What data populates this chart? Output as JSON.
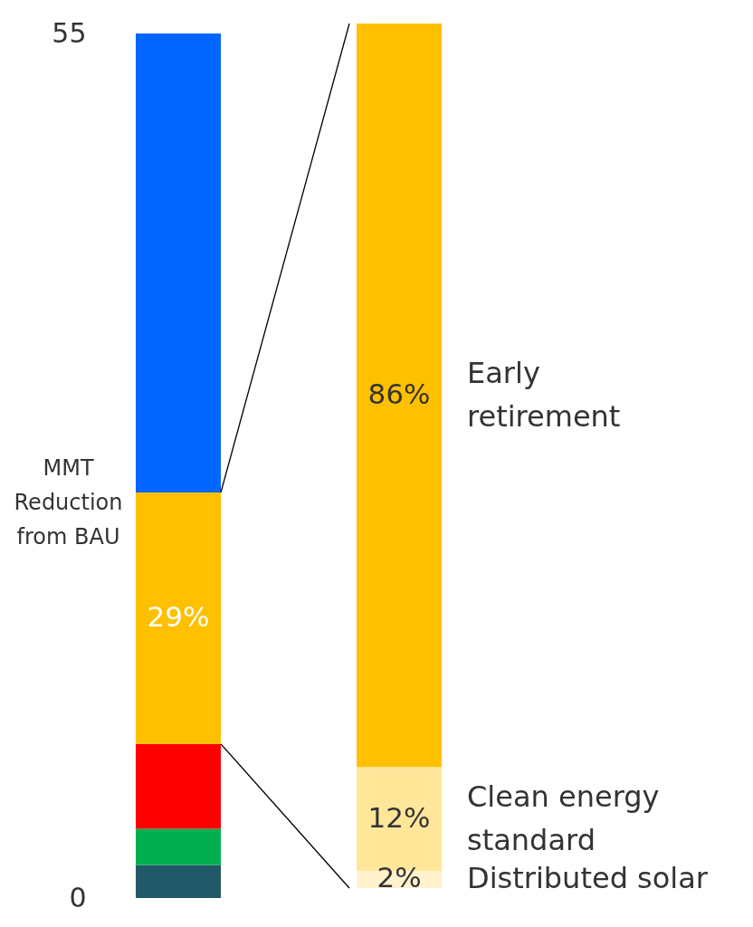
{
  "chart_data": [
    {
      "type": "bar",
      "stacked": true,
      "categories": [
        null
      ],
      "ylabel": "MMT Reduction from BAU",
      "ylim": [
        0,
        55
      ],
      "yticks": [
        0,
        55
      ],
      "tick_labels": "y",
      "annotations": [
        "29%"
      ],
      "series": [
        {
          "color": "#215968",
          "values": [
            2.1
          ]
        },
        {
          "color": "#00b050",
          "values": [
            2.3
          ]
        },
        {
          "color": "#ff0000",
          "values": [
            5.4
          ]
        },
        {
          "color": "#ffc000",
          "values": [
            16
          ]
        },
        {
          "color": "#0066ff",
          "values": [
            29.2
          ]
        }
      ]
    },
    {
      "type": "bar",
      "stacked": true,
      "categories": [
        null
      ],
      "tick_labels": false,
      "series": [
        {
          "name": "Distributed solar",
          "color": "#fff2cc",
          "values": [
            2
          ],
          "value_labels": [
            "2%"
          ]
        },
        {
          "name": "Clean energy standard",
          "color": "#ffe699",
          "values": [
            12
          ],
          "value_labels": [
            "12%"
          ]
        },
        {
          "name": "Early retirement",
          "color": "#ffc000",
          "values": [
            86
          ],
          "value_labels": [
            "86%"
          ]
        }
      ]
    }
  ]
}
